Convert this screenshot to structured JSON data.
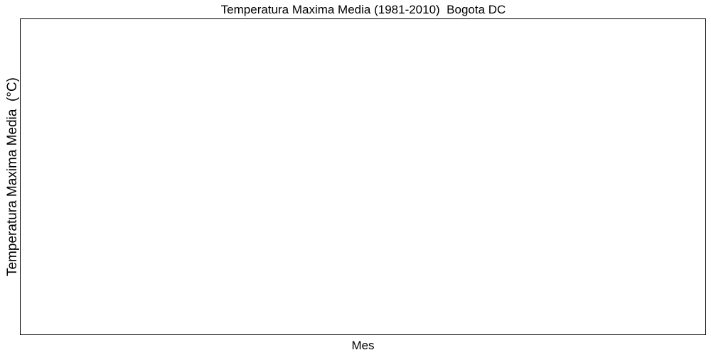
{
  "chart_data": {
    "type": "line",
    "title": "Temperatura Maxima Media (1981-2010)  Bogota DC",
    "xlabel": "Mes",
    "ylabel": "Temperatura Maxima Media  (°C)",
    "categories": [],
    "series": [],
    "grid": false,
    "legend": "none"
  },
  "colors": {
    "background": "#ffffff",
    "frame": "#000000",
    "text": "#000000"
  }
}
